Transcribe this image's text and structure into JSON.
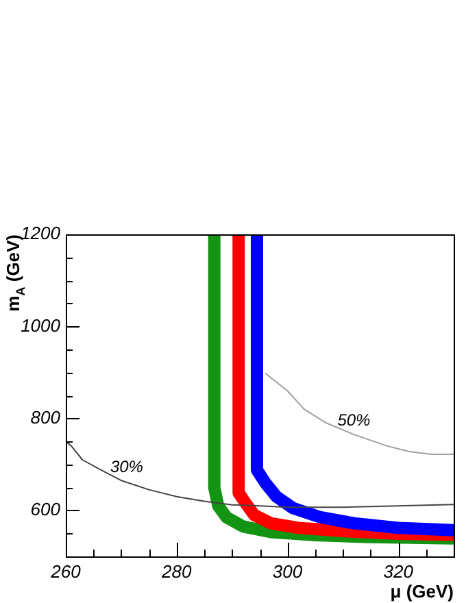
{
  "chart_data": {
    "type": "line",
    "xlabel": "μ (GeV)",
    "ylabel": "m$_{A}$ (GeV)",
    "xlim": [
      260,
      330
    ],
    "ylim": [
      500,
      1200
    ],
    "xticks": [
      260,
      {
        "value": 265,
        "label": null
      },
      {
        "value": 270,
        "label": null
      },
      {
        "value": 275,
        "label": null
      },
      280,
      {
        "value": 285,
        "label": null
      },
      {
        "value": 290,
        "label": null
      },
      {
        "value": 295,
        "label": null
      },
      300,
      {
        "value": 305,
        "label": null
      },
      {
        "value": 310,
        "label": null
      },
      {
        "value": 315,
        "label": null
      },
      320,
      {
        "value": 325,
        "label": null
      }
    ],
    "yticks": [
      {
        "value": 550,
        "label": null
      },
      600,
      {
        "value": 650,
        "label": null
      },
      {
        "value": 700,
        "label": null
      },
      {
        "value": 750,
        "label": null
      },
      800,
      {
        "value": 850,
        "label": null
      },
      {
        "value": 900,
        "label": null
      },
      {
        "value": 950,
        "label": null
      },
      1000,
      {
        "value": 1050,
        "label": null
      },
      {
        "value": 1100,
        "label": null
      },
      {
        "value": 1150,
        "label": null
      },
      1200
    ],
    "grid": false,
    "legend": false,
    "marker": "none",
    "series": [
      {
        "color": "#139413",
        "x": [
          286.8,
          286.8,
          287.5,
          289,
          292,
          297,
          305,
          315,
          330
        ],
        "values": [
          1200,
          650,
          610,
          585,
          565,
          553,
          546,
          542,
          539
        ]
      },
      {
        "color": "#ff0000",
        "x": [
          291.2,
          291.2,
          292.5,
          294,
          297,
          302,
          310,
          320,
          330
        ],
        "values": [
          1200,
          638,
          615,
          590,
          572,
          562,
          555,
          549,
          547
        ]
      },
      {
        "color": "#0000ff",
        "x": [
          294.5,
          294.5,
          296,
          298,
          301,
          306,
          312,
          320,
          330
        ],
        "values": [
          1200,
          688,
          660,
          630,
          605,
          585,
          572,
          562,
          557
        ]
      },
      {
        "color": "#444444",
        "x": [
          260,
          261,
          263,
          266,
          270,
          275,
          280,
          285,
          290,
          295,
          300,
          310,
          320,
          330
        ],
        "values": [
          750,
          740,
          710,
          690,
          665,
          645,
          630,
          620,
          612,
          610,
          607,
          607,
          610,
          613
        ]
      },
      {
        "color": "#a0a0a0",
        "x": [
          296,
          300,
          303,
          307,
          312,
          318,
          322,
          326,
          330
        ],
        "values": [
          898,
          860,
          820,
          790,
          765,
          740,
          728,
          722,
          722
        ]
      }
    ],
    "annotations": [
      {
        "text": "30%",
        "x": 271,
        "y": 663
      },
      {
        "text": "50%",
        "x": 312,
        "y": 765
      }
    ]
  }
}
